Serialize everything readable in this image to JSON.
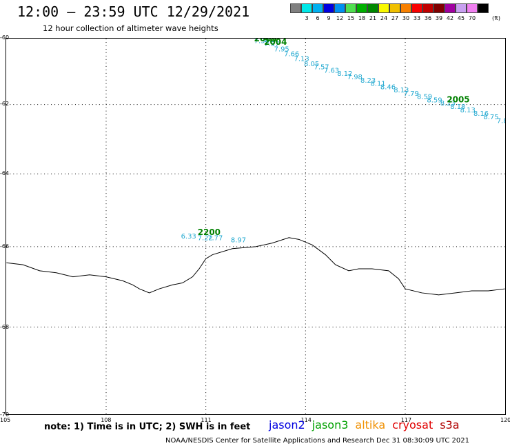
{
  "title": "12:00 – 23:59 UTC 12/29/2021",
  "subtitle": "12 hour collection of altimeter wave heights",
  "legend": {
    "items": [
      {
        "label": "",
        "color": "#808080"
      },
      {
        "label": "3",
        "color": "#00e8e8"
      },
      {
        "label": "6",
        "color": "#00b0f0"
      },
      {
        "label": "9",
        "color": "#0000e0"
      },
      {
        "label": "12",
        "color": "#0090f0"
      },
      {
        "label": "15",
        "color": "#50e050"
      },
      {
        "label": "18",
        "color": "#00b000"
      },
      {
        "label": "21",
        "color": "#008800"
      },
      {
        "label": "24",
        "color": "#f8f800"
      },
      {
        "label": "27",
        "color": "#f0c000"
      },
      {
        "label": "30",
        "color": "#f88000"
      },
      {
        "label": "33",
        "color": "#f80000"
      },
      {
        "label": "36",
        "color": "#c00000"
      },
      {
        "label": "39",
        "color": "#800000"
      },
      {
        "label": "42",
        "color": "#a000a0"
      },
      {
        "label": "45",
        "color": "#c8a0f0"
      },
      {
        "label": "70",
        "color": "#f080f0"
      },
      {
        "label": "",
        "color": "#000000"
      }
    ],
    "unit": "(ft)"
  },
  "axes": {
    "y_ticks": [
      "-60",
      "-62",
      "-64",
      "-66",
      "-68",
      "-70"
    ],
    "x_ticks": [
      "105",
      "108",
      "111",
      "114",
      "117",
      "120"
    ]
  },
  "chart_data": {
    "type": "scatter",
    "lon_range": [
      105,
      120
    ],
    "lat_range": [
      -70,
      -60
    ],
    "track_color": "#20a8d0",
    "time_color": "#008000",
    "pass1": {
      "points": [
        {
          "lon": 112.7,
          "lat": -60.05,
          "swh": "7.36"
        },
        {
          "lon": 113.0,
          "lat": -60.15,
          "swh": "7.57"
        },
        {
          "lon": 113.3,
          "lat": -60.3,
          "swh": "7.95"
        },
        {
          "lon": 113.6,
          "lat": -60.45,
          "swh": "7.66"
        },
        {
          "lon": 113.9,
          "lat": -60.6,
          "swh": "7.13"
        },
        {
          "lon": 114.2,
          "lat": -60.75,
          "swh": "8.05"
        },
        {
          "lon": 114.5,
          "lat": -60.85,
          "swh": "7.57"
        },
        {
          "lon": 114.8,
          "lat": -60.95,
          "swh": "7.63"
        },
        {
          "lon": 115.2,
          "lat": -61.05,
          "swh": "8.12"
        },
        {
          "lon": 115.5,
          "lat": -61.15,
          "swh": "7.98"
        },
        {
          "lon": 115.9,
          "lat": -61.25,
          "swh": "8.23"
        },
        {
          "lon": 116.2,
          "lat": -61.35,
          "swh": "8.11"
        },
        {
          "lon": 116.5,
          "lat": -61.45,
          "swh": "8.46"
        },
        {
          "lon": 116.9,
          "lat": -61.55,
          "swh": "8.13"
        },
        {
          "lon": 117.2,
          "lat": -61.65,
          "swh": "7.79"
        },
        {
          "lon": 117.6,
          "lat": -61.75,
          "swh": "8.59"
        },
        {
          "lon": 117.9,
          "lat": -61.85,
          "swh": "8.59"
        },
        {
          "lon": 118.3,
          "lat": -61.95,
          "swh": "8.23"
        },
        {
          "lon": 118.6,
          "lat": -62.05,
          "swh": "8.18"
        },
        {
          "lon": 118.9,
          "lat": -62.15,
          "swh": "8.13"
        },
        {
          "lon": 119.3,
          "lat": -62.25,
          "swh": "8.16"
        },
        {
          "lon": 119.6,
          "lat": -62.35,
          "swh": "8.75"
        },
        {
          "lon": 120.0,
          "lat": -62.45,
          "swh": "7.8"
        }
      ],
      "times": [
        {
          "lon": 112.7,
          "lat": -60.0,
          "label": "2003"
        },
        {
          "lon": 113.0,
          "lat": -60.1,
          "label": "2004"
        },
        {
          "lon": 118.5,
          "lat": -61.85,
          "label": "2005"
        }
      ]
    },
    "pass2": {
      "points": [
        {
          "lon": 110.5,
          "lat": -65.7,
          "swh": "6.33"
        },
        {
          "lon": 111.0,
          "lat": -65.75,
          "swh": "7.22"
        },
        {
          "lon": 111.3,
          "lat": -65.75,
          "swh": "7.77"
        },
        {
          "lon": 112.0,
          "lat": -65.8,
          "swh": "8.97"
        }
      ],
      "times": [
        {
          "lon": 111.0,
          "lat": -65.6,
          "label": "2200"
        }
      ]
    },
    "coastline": [
      [
        105.0,
        -66.4
      ],
      [
        105.5,
        -66.45
      ],
      [
        106.0,
        -66.6
      ],
      [
        106.5,
        -66.65
      ],
      [
        107.0,
        -66.75
      ],
      [
        107.5,
        -66.7
      ],
      [
        108.0,
        -66.75
      ],
      [
        108.5,
        -66.85
      ],
      [
        108.8,
        -66.95
      ],
      [
        109.0,
        -67.05
      ],
      [
        109.3,
        -67.15
      ],
      [
        109.6,
        -67.05
      ],
      [
        110.0,
        -66.95
      ],
      [
        110.3,
        -66.9
      ],
      [
        110.6,
        -66.75
      ],
      [
        110.8,
        -66.55
      ],
      [
        111.0,
        -66.3
      ],
      [
        111.2,
        -66.2
      ],
      [
        111.8,
        -66.05
      ],
      [
        112.5,
        -66.0
      ],
      [
        113.0,
        -65.9
      ],
      [
        113.5,
        -65.75
      ],
      [
        113.8,
        -65.8
      ],
      [
        114.2,
        -65.95
      ],
      [
        114.6,
        -66.2
      ],
      [
        114.9,
        -66.45
      ],
      [
        115.3,
        -66.6
      ],
      [
        115.6,
        -66.55
      ],
      [
        116.0,
        -66.55
      ],
      [
        116.5,
        -66.6
      ],
      [
        116.8,
        -66.8
      ],
      [
        117.0,
        -67.05
      ],
      [
        117.5,
        -67.15
      ],
      [
        118.0,
        -67.2
      ],
      [
        118.5,
        -67.15
      ],
      [
        119.0,
        -67.1
      ],
      [
        119.5,
        -67.1
      ],
      [
        120.0,
        -67.05
      ]
    ]
  },
  "note": "note: 1) Time is in UTC; 2) SWH is in feet",
  "satellites": [
    {
      "name": "jason2",
      "color": "#0000e0"
    },
    {
      "name": "jason3",
      "color": "#00a000"
    },
    {
      "name": "altika",
      "color": "#f09000"
    },
    {
      "name": "cryosat",
      "color": "#e00000"
    },
    {
      "name": "s3a",
      "color": "#b00000"
    }
  ],
  "footer": "NOAA/NESDIS Center for Satellite Applications and Research    Dec 31 08:30:09 UTC 2021"
}
